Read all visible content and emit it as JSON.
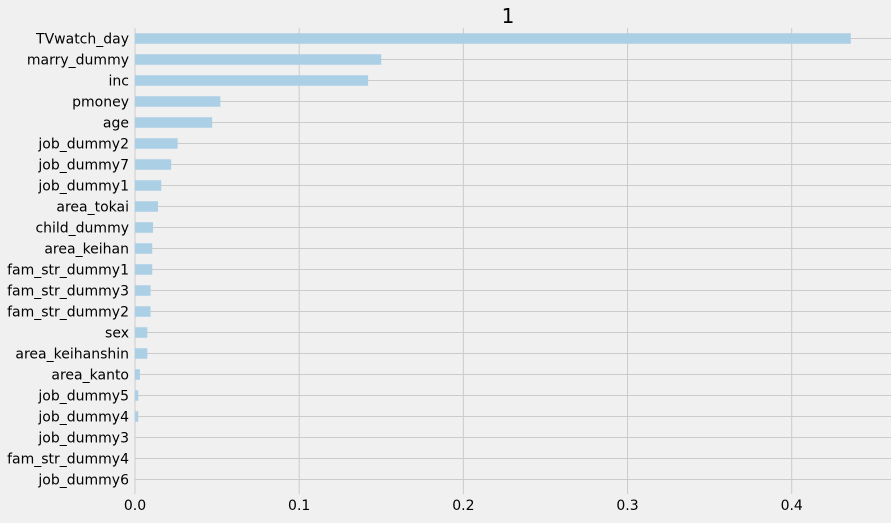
{
  "chart_data": {
    "type": "bar",
    "orientation": "horizontal",
    "title": "1",
    "xlabel": "",
    "ylabel": "",
    "xlim": [
      0.0,
      0.455
    ],
    "xticks": [
      0.0,
      0.1,
      0.2,
      0.3,
      0.4
    ],
    "xtick_labels": [
      "0.0",
      "0.1",
      "0.2",
      "0.3",
      "0.4"
    ],
    "grid": true,
    "legend": "none",
    "categories": [
      "TVwatch_day",
      "marry_dummy",
      "inc",
      "pmoney",
      "age",
      "job_dummy2",
      "job_dummy7",
      "job_dummy1",
      "area_tokai",
      "child_dummy",
      "area_keihan",
      "fam_str_dummy1",
      "fam_str_dummy3",
      "fam_str_dummy2",
      "sex",
      "area_keihanshin",
      "area_kanto",
      "job_dummy5",
      "job_dummy4",
      "job_dummy3",
      "fam_str_dummy4",
      "job_dummy6"
    ],
    "values": [
      0.436,
      0.15,
      0.142,
      0.052,
      0.047,
      0.026,
      0.022,
      0.016,
      0.014,
      0.011,
      0.0105,
      0.0105,
      0.0095,
      0.0095,
      0.0075,
      0.0075,
      0.003,
      0.002,
      0.002,
      0.0,
      0.0,
      0.0
    ],
    "colors": {
      "bar": "#abd0e6",
      "grid": "#cbcbcb",
      "background": "#f0f0f0",
      "text": "#000000"
    }
  }
}
